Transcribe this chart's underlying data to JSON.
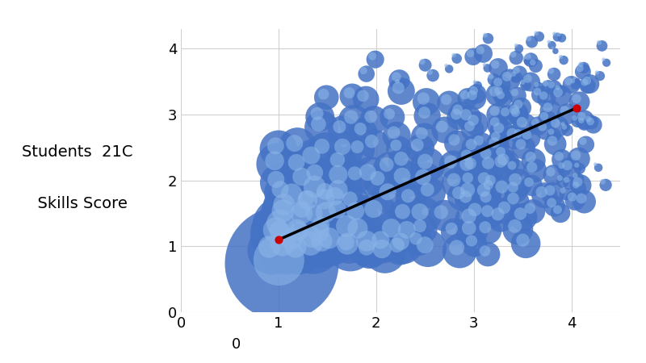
{
  "ylabel_line1": "Students  21C",
  "ylabel_line2": "  Skills Score",
  "background_color": "#ffffff",
  "bubble_color": "#4472C4",
  "trend_color": "#000000",
  "trend_marker_color": "#cc0000",
  "trend_x": [
    1.0,
    4.05
  ],
  "trend_y": [
    1.1,
    3.1
  ],
  "xlim": [
    0,
    4.5
  ],
  "ylim": [
    0,
    4.3
  ],
  "xticks": [
    0,
    1,
    2,
    3,
    4
  ],
  "yticks": [
    0,
    1,
    2,
    3,
    4
  ],
  "grid_color": "#d0d0d0",
  "seed": 7,
  "ylabel_fontsize": 14,
  "tick_fontsize": 13
}
